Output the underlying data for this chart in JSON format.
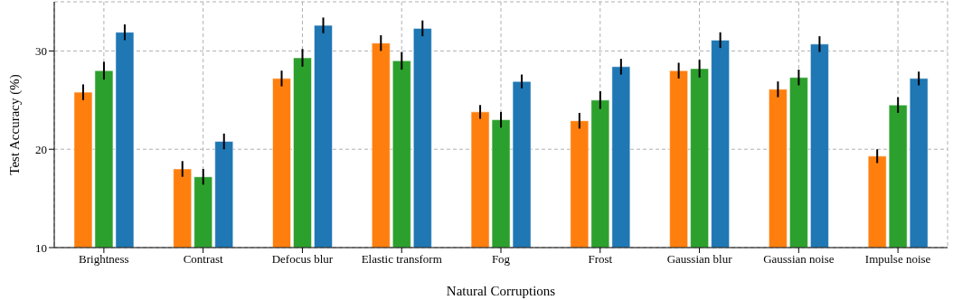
{
  "chart_data": {
    "type": "bar",
    "xlabel": "Natural Corruptions",
    "ylabel": "Test Accuracy (%)",
    "categories": [
      "Brightness",
      "Contrast",
      "Defocus blur",
      "Elastic transform",
      "Fog",
      "Frost",
      "Gaussian blur",
      "Gaussian noise",
      "Impulse noise"
    ],
    "series": [
      {
        "color": "#ff7f0e",
        "values": [
          25.8,
          18.0,
          27.2,
          30.8,
          23.8,
          22.9,
          28.0,
          26.1,
          19.3
        ],
        "errors": [
          0.8,
          0.8,
          0.8,
          0.8,
          0.7,
          0.8,
          0.8,
          0.8,
          0.7
        ]
      },
      {
        "color": "#2ca02c",
        "values": [
          28.0,
          17.2,
          29.3,
          29.0,
          23.0,
          25.0,
          28.2,
          27.3,
          24.5
        ],
        "errors": [
          0.9,
          0.8,
          0.9,
          0.9,
          0.8,
          0.9,
          0.9,
          0.8,
          0.8
        ]
      },
      {
        "color": "#1f77b4",
        "values": [
          31.9,
          20.8,
          32.6,
          32.3,
          26.9,
          28.4,
          31.1,
          30.7,
          27.2
        ],
        "errors": [
          0.8,
          0.8,
          0.8,
          0.8,
          0.7,
          0.8,
          0.8,
          0.8,
          0.7
        ]
      }
    ],
    "ylim": [
      10,
      35
    ],
    "yticks": [
      10,
      20,
      30
    ],
    "grid": true,
    "legend": false
  }
}
